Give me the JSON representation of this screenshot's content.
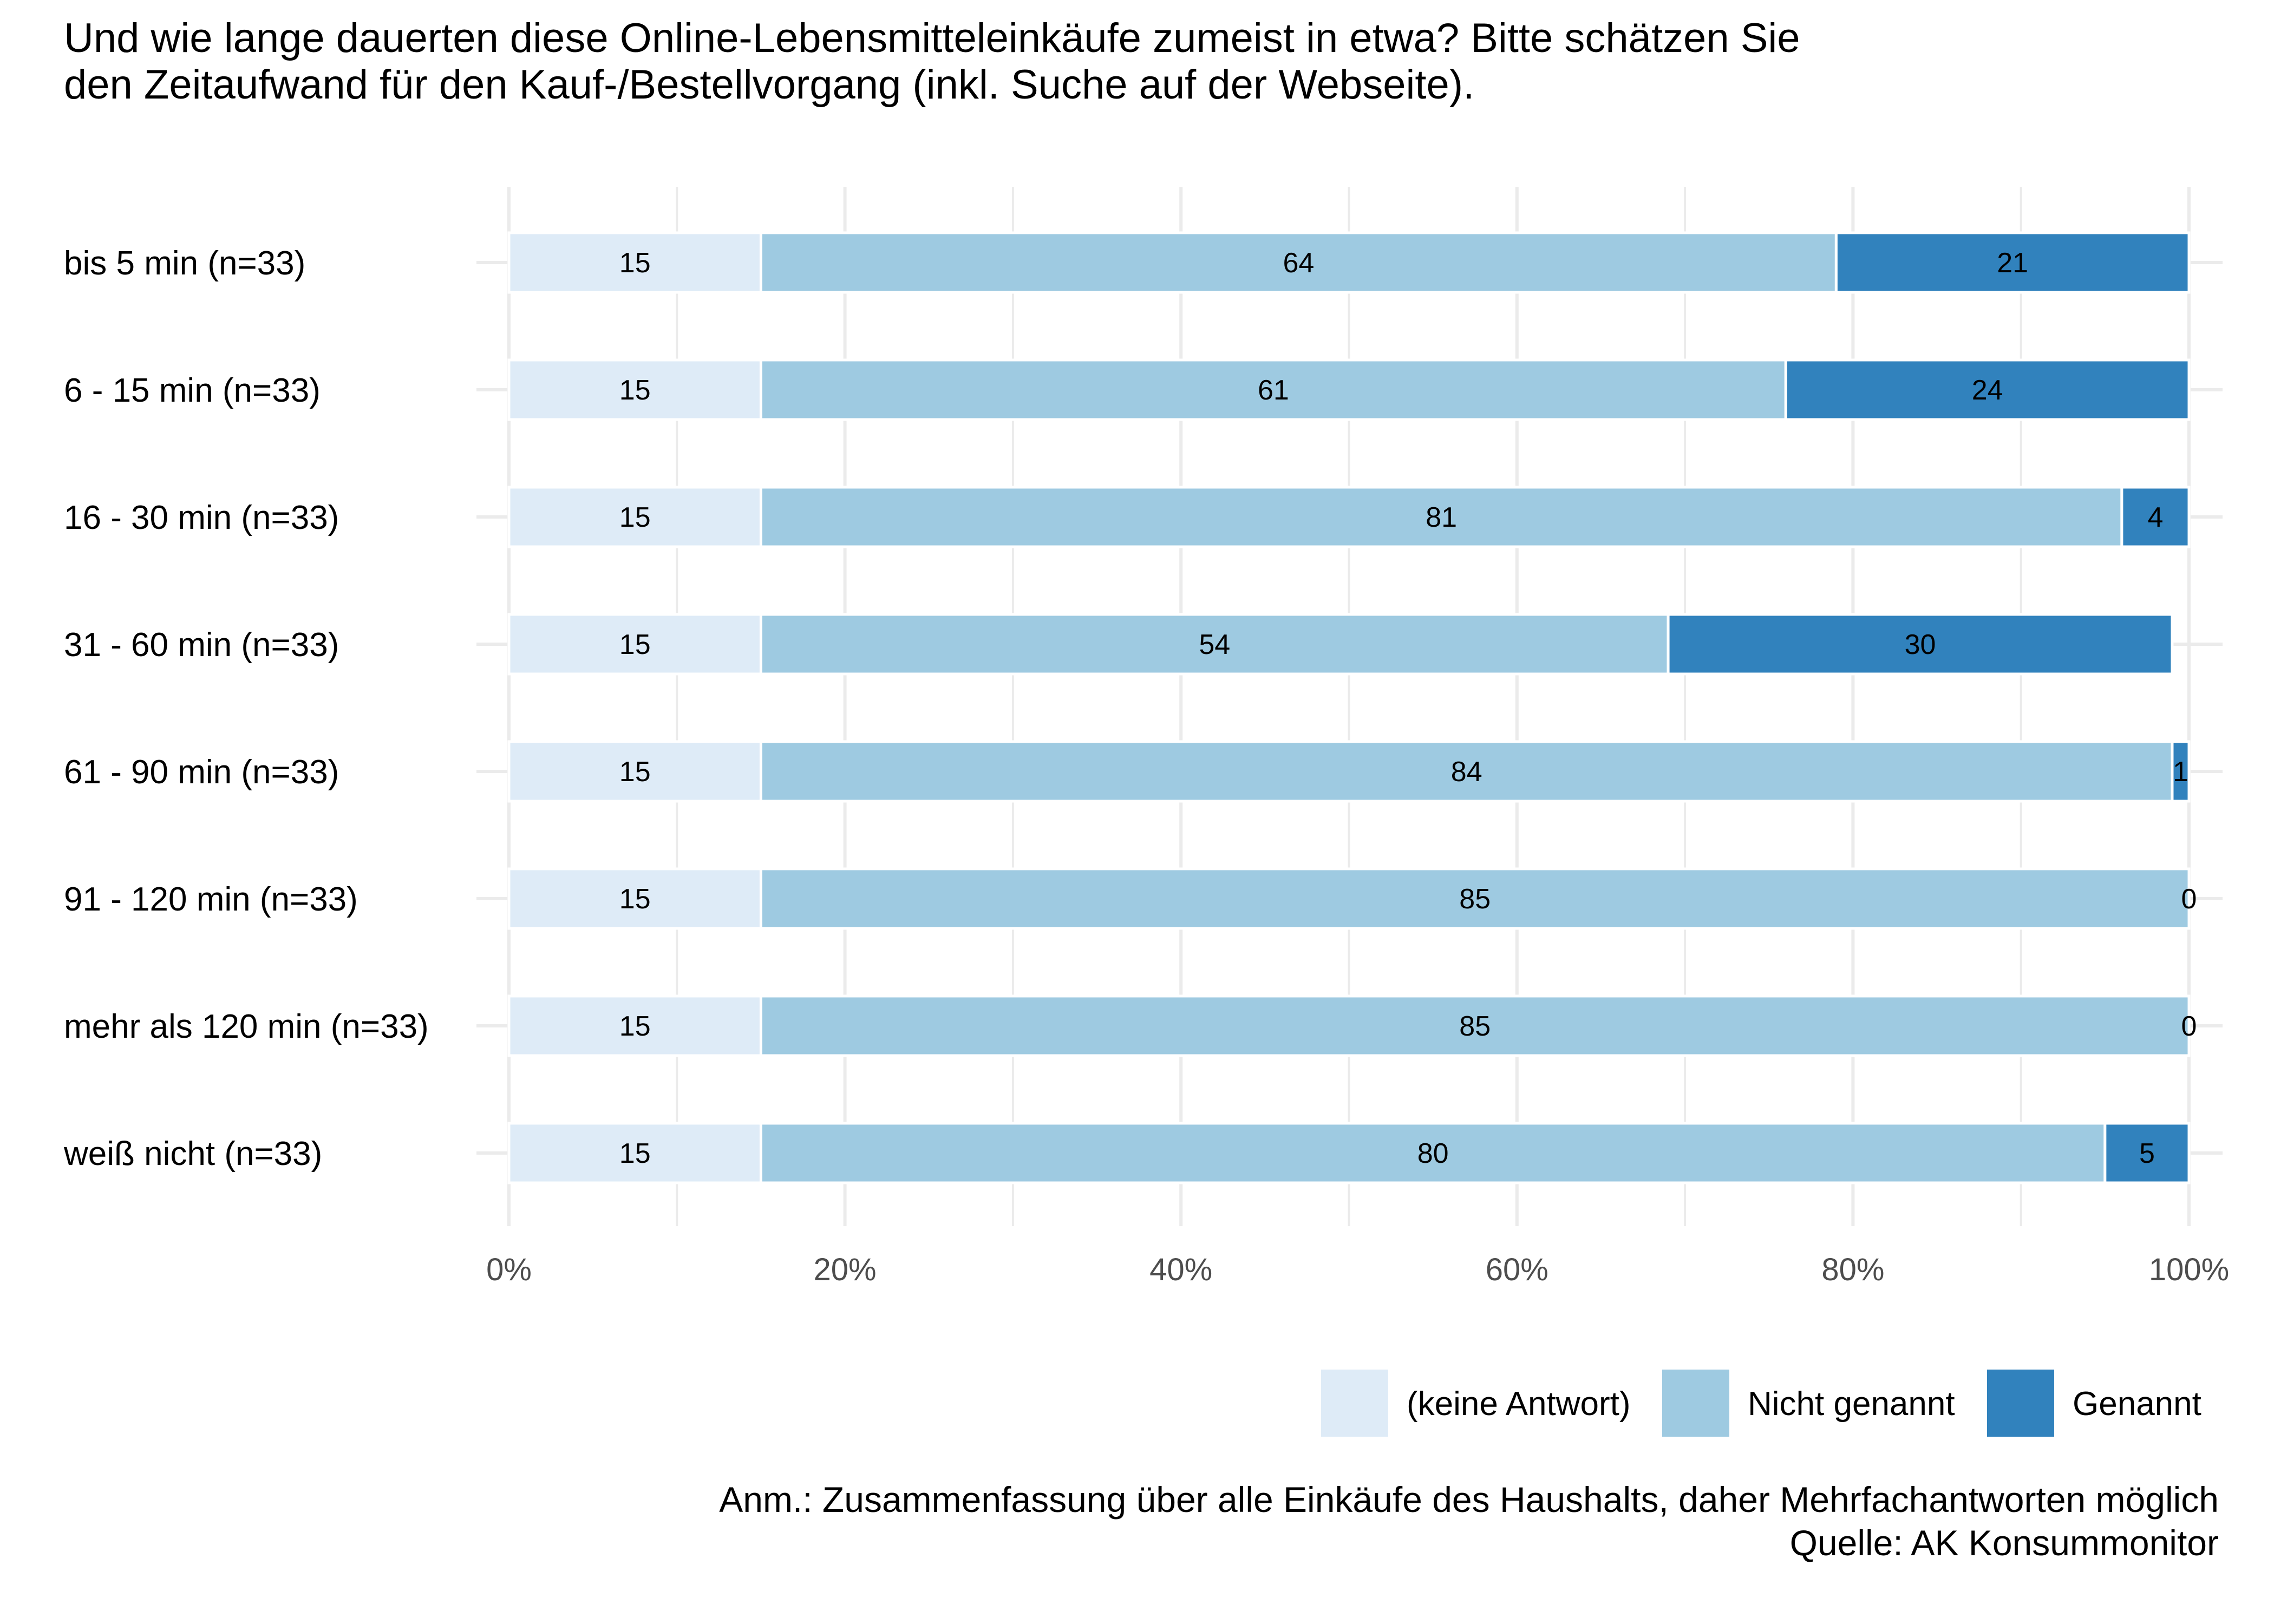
{
  "title": {
    "line1": "Und wie lange dauerten diese Online-Lebensmitteleinkäufe zumeist in etwa? Bitte schätzen Sie",
    "line2": "den Zeitaufwand für den Kauf-/Bestellvorgang (inkl. Suche auf der Webseite)."
  },
  "chart_data": {
    "type": "bar",
    "orientation": "horizontal",
    "stacked": true,
    "title": "Und wie lange dauerten diese Online-Lebensmitteleinkäufe zumeist in etwa? Bitte schätzen Sie den Zeitaufwand für den Kauf-/Bestellvorgang (inkl. Suche auf der Webseite).",
    "categories": [
      "bis 5 min (n=33)",
      "6 - 15 min (n=33)",
      "16 - 30 min (n=33)",
      "31 - 60 min (n=33)",
      "61 - 90 min (n=33)",
      "91 - 120 min (n=33)",
      "mehr als 120 min (n=33)",
      "weiß nicht (n=33)"
    ],
    "series": [
      {
        "name": "(keine Antwort)",
        "color": "#deebf7",
        "values": [
          15,
          15,
          15,
          15,
          15,
          15,
          15,
          15
        ]
      },
      {
        "name": "Nicht genannt",
        "color": "#9ecae1",
        "values": [
          64,
          61,
          81,
          54,
          84,
          85,
          85,
          80
        ]
      },
      {
        "name": "Genannt",
        "color": "#3182bd",
        "values": [
          21,
          24,
          4,
          30,
          1,
          0,
          0,
          5
        ]
      }
    ],
    "xlim": [
      0,
      100
    ],
    "x_ticks": [
      "0%",
      "20%",
      "40%",
      "60%",
      "80%",
      "100%"
    ],
    "xlabel": "",
    "ylabel": "",
    "grid": true,
    "legend_position": "bottom-right"
  },
  "caption": {
    "note": "Anm.: Zusammenfassung über alle Einkäufe des Haushalts, daher Mehrfachantworten möglich",
    "source": "Quelle: AK Konsummonitor"
  }
}
